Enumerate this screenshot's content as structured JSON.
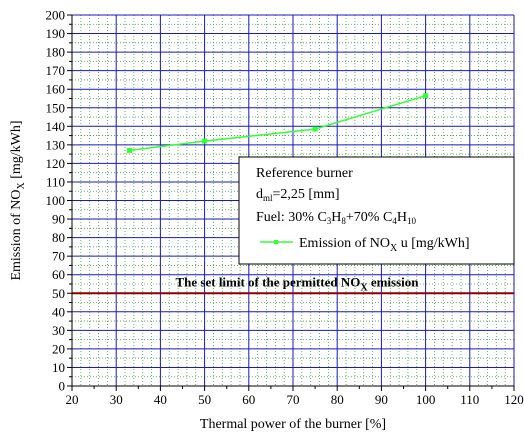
{
  "chart_data": {
    "type": "line",
    "xlabel": "Thermal power of the burner [%]",
    "ylabel_main": "Emission of NO",
    "ylabel_sub": "X",
    "ylabel_unit": " [mg/kWh]",
    "xlim": [
      20,
      120
    ],
    "ylim": [
      0,
      200
    ],
    "x_ticks": [
      20,
      30,
      40,
      50,
      60,
      70,
      80,
      90,
      100,
      110,
      120
    ],
    "y_ticks": [
      0,
      10,
      20,
      30,
      40,
      50,
      60,
      70,
      80,
      90,
      100,
      110,
      120,
      130,
      140,
      150,
      160,
      170,
      180,
      190,
      200
    ],
    "grid": true,
    "colors": {
      "grid_major": "#1a1ab4",
      "grid_minor": "#4a9a4a",
      "series": "#33ff33",
      "limit": "#8b0000"
    },
    "series": [
      {
        "name_main": "Emission of NO",
        "name_sub": "X",
        "name_unit": " u [mg/kWh]",
        "x": [
          33,
          50,
          75,
          100
        ],
        "y": [
          127,
          132,
          138.5,
          156.5
        ]
      }
    ],
    "limit": {
      "value": 50,
      "label_main": "The set limit of the permitted NO",
      "label_sub": "X",
      "label_unit": " emission"
    },
    "legend": {
      "placement": "center-right",
      "line1": "Reference burner",
      "line2_main": "d",
      "line2_sub": "ml",
      "line2_rest": "=2,25 [mm]",
      "line3_a": "Fuel: 30% C",
      "line3_b": "3",
      "line3_c": "H",
      "line3_d": "8",
      "line3_e": "+70% C",
      "line3_f": "4",
      "line3_g": "H",
      "line3_h": "10"
    }
  }
}
